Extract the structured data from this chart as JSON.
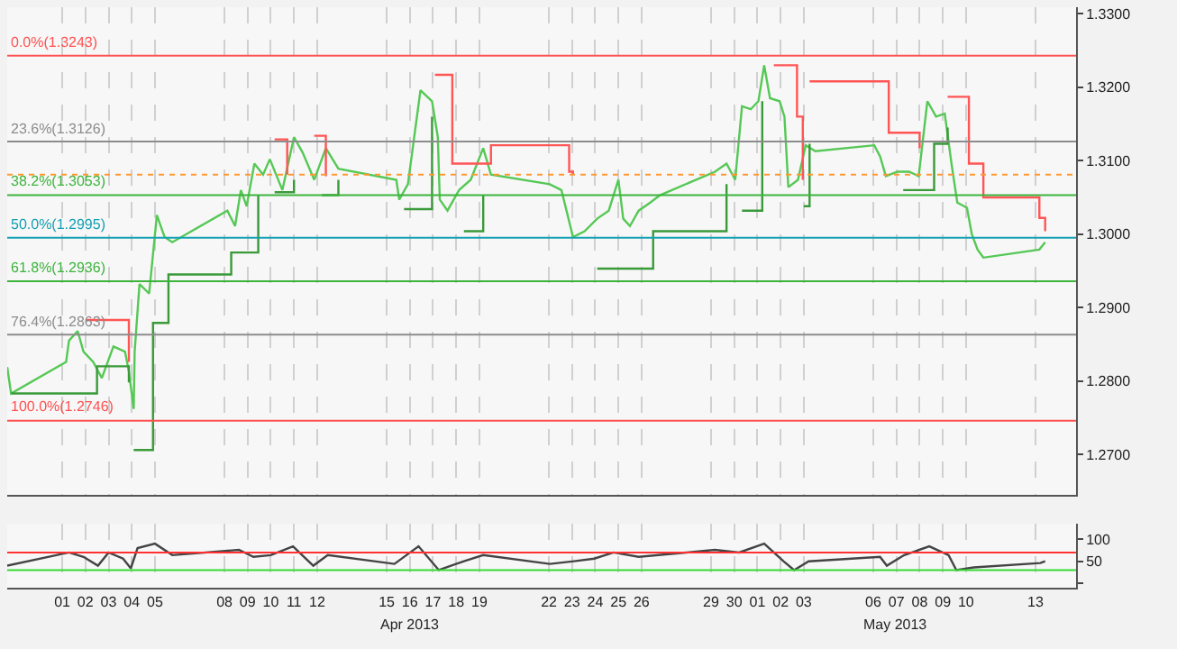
{
  "chart_data": [
    {
      "type": "line",
      "grid": "x",
      "line_style": "solid",
      "marker": "none",
      "tick_labels": "y",
      "xlim": [
        "2013-03-29T15:00",
        "2013-05-14T18:00"
      ],
      "xticks": [
        {
          "value": "2013-04-01",
          "label": null
        },
        {
          "value": "2013-04-02",
          "label": null
        },
        {
          "value": "2013-04-03",
          "label": null
        },
        {
          "value": "2013-04-04",
          "label": null
        },
        {
          "value": "2013-04-05",
          "label": null
        },
        {
          "value": "2013-04-08",
          "label": null
        },
        {
          "value": "2013-04-09",
          "label": null
        },
        {
          "value": "2013-04-10",
          "label": null
        },
        {
          "value": "2013-04-11",
          "label": null
        },
        {
          "value": "2013-04-12",
          "label": null
        },
        {
          "value": "2013-04-15",
          "label": null
        },
        {
          "value": "2013-04-16",
          "label": null
        },
        {
          "value": "2013-04-17",
          "label": null
        },
        {
          "value": "2013-04-18",
          "label": null
        },
        {
          "value": "2013-04-19",
          "label": null
        },
        {
          "value": "2013-04-22",
          "label": null
        },
        {
          "value": "2013-04-23",
          "label": null
        },
        {
          "value": "2013-04-24",
          "label": null
        },
        {
          "value": "2013-04-25",
          "label": null
        },
        {
          "value": "2013-04-26",
          "label": null
        },
        {
          "value": "2013-04-29",
          "label": null
        },
        {
          "value": "2013-04-30",
          "label": null
        },
        {
          "value": "2013-05-01",
          "label": null
        },
        {
          "value": "2013-05-02",
          "label": null
        },
        {
          "value": "2013-05-03",
          "label": null
        },
        {
          "value": "2013-05-06",
          "label": null
        },
        {
          "value": "2013-05-07",
          "label": null
        },
        {
          "value": "2013-05-08",
          "label": null
        },
        {
          "value": "2013-05-09",
          "label": null
        },
        {
          "value": "2013-05-10",
          "label": null
        },
        {
          "value": "2013-05-13",
          "label": null
        }
      ],
      "ylim": [
        1.2645,
        1.3309
      ],
      "yticks": [
        {
          "value": 1.27,
          "label": "1.2700"
        },
        {
          "value": 1.28,
          "label": "1.2800"
        },
        {
          "value": 1.29,
          "label": "1.2900"
        },
        {
          "value": 1.3,
          "label": "1.3000"
        },
        {
          "value": 1.31,
          "label": "1.3100"
        },
        {
          "value": 1.32,
          "label": "1.3200"
        },
        {
          "value": 1.33,
          "label": "1.3300"
        }
      ],
      "ref_lines": [
        {
          "axis": "y",
          "value": 1.3243,
          "label": "0.0%(1.3243)",
          "color": "#ff5050",
          "line_style": "solid"
        },
        {
          "axis": "y",
          "value": 1.3126,
          "label": "23.6%(1.3126)",
          "color": "#8c8c8c",
          "line_style": "solid"
        },
        {
          "axis": "y",
          "value": 1.3053,
          "label": "38.2%(1.3053)",
          "color": "#3cb43c",
          "line_style": "solid"
        },
        {
          "axis": "y",
          "value": 1.2995,
          "label": "50.0%(1.2995)",
          "color": "#14a0b4",
          "line_style": "solid"
        },
        {
          "axis": "y",
          "value": 1.2936,
          "label": "61.8%(1.2936)",
          "color": "#3cb43c",
          "line_style": "solid"
        },
        {
          "axis": "y",
          "value": 1.2863,
          "label": "76.4%(1.2863)",
          "color": "#8c8c8c",
          "line_style": "solid"
        },
        {
          "axis": "y",
          "value": 1.2746,
          "label": "100.0%(1.2746)",
          "color": "#ff5050",
          "line_style": "solid"
        },
        {
          "axis": "y",
          "value": 1.3081,
          "label": null,
          "color": "#ff9933",
          "line_style": "dotted"
        }
      ],
      "series": [
        {
          "color": "#55c855",
          "x": [
            "2013-03-29T15:00",
            "2013-03-29T19:00",
            "2013-04-01T04:00",
            "2013-04-01T07:00",
            "2013-04-01T16:00",
            "2013-04-01T22:00",
            "2013-04-02T08:00",
            "2013-04-02T17:00",
            "2013-04-03T05:00",
            "2013-04-03T17:00",
            "2013-04-03T21:00",
            "2013-04-04T02:00",
            "2013-04-04T03:00",
            "2013-04-04T08:00",
            "2013-04-04T18:00",
            "2013-04-05T02:00",
            "2013-04-05T10:00",
            "2013-04-05T18:00",
            "2013-04-08T03:00",
            "2013-04-08T11:00",
            "2013-04-08T17:00",
            "2013-04-08T23:00",
            "2013-04-09T07:00",
            "2013-04-09T16:00",
            "2013-04-09T23:00",
            "2013-04-10T12:00",
            "2013-04-11T00:00",
            "2013-04-11T09:00",
            "2013-04-11T21:00",
            "2013-04-12T09:00",
            "2013-04-12T22:00",
            "2013-04-15T10:00",
            "2013-04-15T13:00",
            "2013-04-15T22:00",
            "2013-04-16T11:00",
            "2013-04-16T23:00",
            "2013-04-17T05:00",
            "2013-04-17T07:00",
            "2013-04-17T15:00",
            "2013-04-18T03:00",
            "2013-04-18T15:00",
            "2013-04-19T04:00",
            "2013-04-19T12:00",
            "2013-04-22T01:00",
            "2013-04-22T13:00",
            "2013-04-23T01:00",
            "2013-04-23T13:00",
            "2013-04-24T02:00",
            "2013-04-24T14:00",
            "2013-04-25T00:00",
            "2013-04-25T05:00",
            "2013-04-25T12:00",
            "2013-04-25T21:00",
            "2013-04-26T09:00",
            "2013-04-26T19:00",
            "2013-04-29T04:00",
            "2013-04-29T16:00",
            "2013-04-30T01:00",
            "2013-04-30T08:00",
            "2013-04-30T17:00",
            "2013-05-01T01:00",
            "2013-05-01T07:00",
            "2013-05-01T13:00",
            "2013-05-01T23:00",
            "2013-05-02T04:00",
            "2013-05-02T08:00",
            "2013-05-02T18:00",
            "2013-05-03T02:00",
            "2013-05-03T12:00",
            "2013-05-06T01:00",
            "2013-05-06T07:00",
            "2013-05-06T13:00",
            "2013-05-07T01:00",
            "2013-05-07T13:00",
            "2013-05-07T23:00",
            "2013-05-08T08:00",
            "2013-05-08T17:00",
            "2013-05-09T02:00",
            "2013-05-09T09:00",
            "2013-05-09T15:00",
            "2013-05-10T01:00",
            "2013-05-10T06:00",
            "2013-05-10T12:00",
            "2013-05-10T18:00",
            "2013-05-13T04:00",
            "2013-05-13T10:00"
          ],
          "values": [
            1.2819,
            1.2783,
            1.2826,
            1.2855,
            1.2868,
            1.284,
            1.2826,
            1.2804,
            1.2847,
            1.284,
            1.2813,
            1.2762,
            1.284,
            1.2932,
            1.2919,
            1.3026,
            1.2996,
            1.2989,
            1.3032,
            1.3011,
            1.306,
            1.3038,
            1.3096,
            1.3081,
            1.3102,
            1.306,
            1.3132,
            1.3111,
            1.3074,
            1.3117,
            1.3089,
            1.3074,
            1.3047,
            1.3068,
            1.3196,
            1.3181,
            1.3132,
            1.3047,
            1.3032,
            1.306,
            1.3074,
            1.3117,
            1.3081,
            1.3068,
            1.306,
            1.2996,
            1.3004,
            1.3021,
            1.3032,
            1.3074,
            1.3021,
            1.3011,
            1.3032,
            1.3043,
            1.3053,
            1.3085,
            1.3096,
            1.3074,
            1.3174,
            1.317,
            1.3181,
            1.323,
            1.3185,
            1.3181,
            1.316,
            1.3064,
            1.3074,
            1.3121,
            1.3113,
            1.3121,
            1.3106,
            1.3079,
            1.3085,
            1.3085,
            1.3079,
            1.3181,
            1.316,
            1.3164,
            1.3096,
            1.3043,
            1.3036,
            1.3,
            1.2979,
            1.2968,
            1.2979,
            1.2989
          ]
        },
        {
          "color": "#ff5555",
          "type": "step",
          "x": [
            "2013-04-02T01:00",
            "2013-04-03T21:00",
            "2013-04-04T00:00",
            "2013-04-10T04:00",
            "2013-04-10T17:00",
            "2013-04-10T19:00",
            "2013-04-11T21:00",
            "2013-04-12T09:00",
            "2013-04-12T12:00",
            "2013-04-17T02:00",
            "2013-04-17T20:00",
            "2013-04-18T08:00",
            "2013-04-19T12:00",
            "2013-04-22T21:00",
            "2013-04-22T21:00",
            "2013-04-23T01:00",
            "2013-04-23T05:00",
            "2013-05-01T17:00",
            "2013-05-02T17:00",
            "2013-05-02T23:00",
            "2013-05-03T02:00",
            "2013-05-03T06:00",
            "2013-05-06T16:00",
            "2013-05-06T16:00",
            "2013-05-08T00:00",
            "2013-05-08T02:00",
            "2013-05-09T05:00",
            "2013-05-10T03:00",
            "2013-05-10T18:00",
            "2013-05-13T04:00",
            "2013-05-13T10:00"
          ],
          "values": [
            1.2883,
            1.2826,
            null,
            1.3129,
            1.3081,
            null,
            1.3134,
            1.3079,
            null,
            1.3217,
            1.3096,
            1.3096,
            1.3121,
            1.3121,
            1.3085,
            1.3081,
            null,
            1.323,
            1.316,
            1.3074,
            null,
            1.3208,
            1.3208,
            1.3138,
            1.3117,
            null,
            1.3187,
            1.3096,
            1.305,
            1.3022,
            1.3004
          ]
        },
        {
          "color": "#3a9a3a",
          "type": "step",
          "x": [
            "2013-03-29T19:00",
            "2013-04-02T12:00",
            "2013-04-03T21:00",
            "2013-04-04T00:00",
            "2013-04-04T02:00",
            "2013-04-04T22:00",
            "2013-04-05T14:00",
            "2013-04-08T07:00",
            "2013-04-09T11:00",
            "2013-04-09T14:00",
            "2013-04-10T04:00",
            "2013-04-11T00:00",
            "2013-04-11T02:00",
            "2013-04-12T05:00",
            "2013-04-12T22:00",
            "2013-04-15T00:00",
            "2013-04-15T18:00",
            "2013-04-16T23:00",
            "2013-04-17T02:00",
            "2013-04-18T08:00",
            "2013-04-19T04:00",
            "2013-04-19T07:00",
            "2013-04-24T02:00",
            "2013-04-26T12:00",
            "2013-04-29T16:00",
            "2013-04-29T19:00",
            "2013-04-30T08:00",
            "2013-05-01T05:00",
            "2013-05-01T07:00",
            "2013-05-03T00:00",
            "2013-05-03T06:00",
            "2013-05-03T10:00",
            "2013-05-07T07:00",
            "2013-05-08T15:00",
            "2013-05-09T05:00"
          ],
          "values": [
            1.2783,
            1.282,
            1.2798,
            null,
            1.2706,
            1.2879,
            1.2945,
            1.2975,
            1.3053,
            null,
            1.3057,
            1.3074,
            null,
            1.3053,
            1.3074,
            null,
            1.3034,
            1.316,
            null,
            1.3004,
            1.3053,
            null,
            1.2953,
            1.3004,
            1.3068,
            null,
            1.3032,
            1.3181,
            null,
            1.3038,
            1.3123,
            null,
            1.306,
            1.3123,
            1.3145
          ]
        }
      ]
    },
    {
      "type": "line",
      "grid": "x",
      "line_style": "solid",
      "marker": "none",
      "xlim": [
        "2013-03-29T15:00",
        "2013-05-14T18:00"
      ],
      "xticks": [
        {
          "value": "2013-04-01",
          "label": "01"
        },
        {
          "value": "2013-04-02",
          "label": "02"
        },
        {
          "value": "2013-04-03",
          "label": "03"
        },
        {
          "value": "2013-04-04",
          "label": "04"
        },
        {
          "value": "2013-04-05",
          "label": "05"
        },
        {
          "value": "2013-04-08",
          "label": "08"
        },
        {
          "value": "2013-04-09",
          "label": "09"
        },
        {
          "value": "2013-04-10",
          "label": "10"
        },
        {
          "value": "2013-04-11",
          "label": "11"
        },
        {
          "value": "2013-04-12",
          "label": "12"
        },
        {
          "value": "2013-04-15",
          "label": "15"
        },
        {
          "value": "2013-04-16",
          "label": "16"
        },
        {
          "value": "2013-04-17",
          "label": "17"
        },
        {
          "value": "2013-04-18",
          "label": "18"
        },
        {
          "value": "2013-04-19",
          "label": "19"
        },
        {
          "value": "2013-04-22",
          "label": "22"
        },
        {
          "value": "2013-04-23",
          "label": "23"
        },
        {
          "value": "2013-04-24",
          "label": "24"
        },
        {
          "value": "2013-04-25",
          "label": "25"
        },
        {
          "value": "2013-04-26",
          "label": "26"
        },
        {
          "value": "2013-04-29",
          "label": "29"
        },
        {
          "value": "2013-04-30",
          "label": "30"
        },
        {
          "value": "2013-05-01",
          "label": "01"
        },
        {
          "value": "2013-05-02",
          "label": "02"
        },
        {
          "value": "2013-05-03",
          "label": "03"
        },
        {
          "value": "2013-05-06",
          "label": "06"
        },
        {
          "value": "2013-05-07",
          "label": "07"
        },
        {
          "value": "2013-05-08",
          "label": "08"
        },
        {
          "value": "2013-05-09",
          "label": "09"
        },
        {
          "value": "2013-05-10",
          "label": "10"
        },
        {
          "value": "2013-05-13",
          "label": "13"
        }
      ],
      "ylim": [
        -10,
        135
      ],
      "yticks": [
        {
          "value": 0,
          "label": null
        },
        50,
        100
      ],
      "annotations": [
        "Apr 2013",
        "May 2013"
      ],
      "ref_lines": [
        {
          "axis": "y",
          "value": 70,
          "label": null,
          "color": "#ff3333",
          "line_style": "solid"
        },
        {
          "axis": "y",
          "value": 30,
          "label": null,
          "color": "#33dd33",
          "line_style": "solid"
        }
      ],
      "series": [
        {
          "color": "#444444",
          "x": [
            "2013-03-29T15:00",
            "2013-04-01T07:00",
            "2013-04-01T22:00",
            "2013-04-02T13:00",
            "2013-04-03T00:00",
            "2013-04-03T15:00",
            "2013-04-03T23:00",
            "2013-04-04T06:00",
            "2013-04-05T00:00",
            "2013-04-05T18:00",
            "2013-04-08T15:00",
            "2013-04-09T06:00",
            "2013-04-10T00:00",
            "2013-04-10T23:00",
            "2013-04-11T20:00",
            "2013-04-12T11:00",
            "2013-04-15T08:00",
            "2013-04-16T09:00",
            "2013-04-17T06:00",
            "2013-04-18T08:00",
            "2013-04-19T04:00",
            "2013-04-22T01:00",
            "2013-04-23T02:00",
            "2013-04-23T23:00",
            "2013-04-24T19:00",
            "2013-04-25T21:00",
            "2013-04-29T04:00",
            "2013-04-30T05:00",
            "2013-05-01T07:00",
            "2013-05-02T03:00",
            "2013-05-02T14:00",
            "2013-05-03T05:00",
            "2013-05-06T07:00",
            "2013-05-06T14:00",
            "2013-05-07T08:00",
            "2013-05-08T10:00",
            "2013-05-09T06:00",
            "2013-05-09T14:00",
            "2013-05-10T08:00",
            "2013-05-13T05:00",
            "2013-05-13T10:00"
          ],
          "values": [
            40,
            70,
            60,
            40,
            70,
            56,
            34,
            80,
            90,
            64,
            76,
            60,
            64,
            84,
            40,
            64,
            44,
            84,
            30,
            50,
            64,
            44,
            50,
            56,
            70,
            60,
            76,
            70,
            90,
            50,
            30,
            50,
            60,
            40,
            64,
            84,
            64,
            30,
            36,
            46,
            50
          ]
        }
      ]
    }
  ]
}
